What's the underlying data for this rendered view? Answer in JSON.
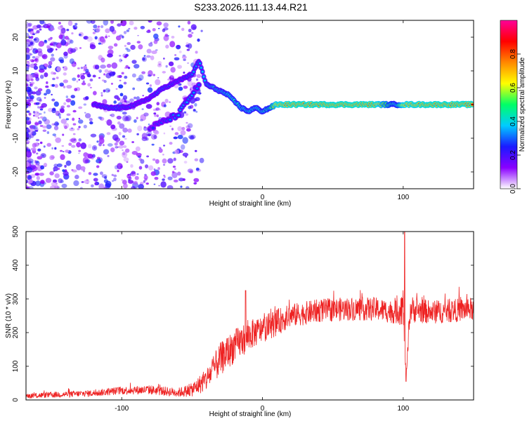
{
  "title": "S233.2026.111.13.44.R21",
  "chart_data": [
    {
      "type": "heatmap",
      "name": "spectrogram",
      "xlabel": "Height of straight line (km)",
      "ylabel": "Frequency (Hz)",
      "xlim": [
        -168,
        150
      ],
      "ylim": [
        -25,
        25
      ],
      "xticks": [
        -100,
        0,
        100
      ],
      "yticks": [
        -20,
        -10,
        0,
        10,
        20
      ],
      "colorbar": {
        "label": "Normalized spectral amplitude",
        "range": [
          0,
          1
        ],
        "ticks": [
          0.0,
          0.2,
          0.4,
          0.6,
          0.8
        ],
        "colors": [
          "#ffffff",
          "#8a00ff",
          "#1a1aff",
          "#00ccff",
          "#00ff66",
          "#ffff00",
          "#ff8800",
          "#ff0000",
          "#ff0099"
        ]
      },
      "ridge": {
        "x": [
          -120,
          -110,
          -100,
          -90,
          -80,
          -70,
          -60,
          -50,
          -45,
          -40,
          -35,
          -30,
          -25,
          -20,
          -15,
          -10,
          -5,
          0,
          5,
          10,
          20,
          40,
          60,
          80,
          90,
          95,
          100,
          120,
          150
        ],
        "f": [
          0,
          -1,
          -1,
          0,
          2,
          5,
          7,
          9,
          13,
          6,
          5,
          4,
          3,
          1,
          -1,
          -2,
          -1,
          -2,
          -1,
          0,
          0,
          0,
          0,
          0,
          0,
          0,
          0,
          0,
          0
        ],
        "amp": [
          0.3,
          0.35,
          0.35,
          0.3,
          0.3,
          0.35,
          0.3,
          0.35,
          0.35,
          0.4,
          0.45,
          0.45,
          0.5,
          0.5,
          0.5,
          0.5,
          0.5,
          0.5,
          0.55,
          0.85,
          0.9,
          0.9,
          0.9,
          0.9,
          0.6,
          0.5,
          0.85,
          0.9,
          0.9
        ]
      },
      "branch": {
        "x": [
          -80,
          -70,
          -60,
          -55,
          -50,
          -45
        ],
        "f": [
          -7,
          -5,
          -3,
          0,
          3,
          6
        ],
        "amp": [
          0.25,
          0.3,
          0.35,
          0.35,
          0.35,
          0.3
        ]
      }
    },
    {
      "type": "line",
      "name": "snr",
      "xlabel": "Height of straight line (km)",
      "ylabel": "SNR (10 * v/v)",
      "xlim": [
        -168,
        150
      ],
      "ylim": [
        0,
        500
      ],
      "xticks": [
        -100,
        0,
        100
      ],
      "yticks": [
        0,
        100,
        200,
        300,
        400,
        500
      ],
      "color": "#ee2222",
      "envelope": {
        "x": [
          -168,
          -120,
          -100,
          -80,
          -60,
          -50,
          -40,
          -30,
          -20,
          -10,
          0,
          10,
          20,
          40,
          60,
          80,
          95,
          100,
          102,
          105,
          120,
          150
        ],
        "mean": [
          12,
          20,
          28,
          30,
          22,
          30,
          60,
          120,
          160,
          190,
          210,
          230,
          250,
          265,
          270,
          270,
          260,
          280,
          60,
          270,
          260,
          270
        ],
        "spread": [
          8,
          10,
          12,
          14,
          14,
          20,
          35,
          50,
          50,
          45,
          40,
          40,
          35,
          35,
          35,
          35,
          35,
          60,
          10,
          40,
          35,
          35
        ]
      },
      "spikes": [
        {
          "x": -12,
          "y": 325
        },
        {
          "x": 101,
          "y": 500
        },
        {
          "x": 102,
          "y": 55
        }
      ]
    }
  ]
}
